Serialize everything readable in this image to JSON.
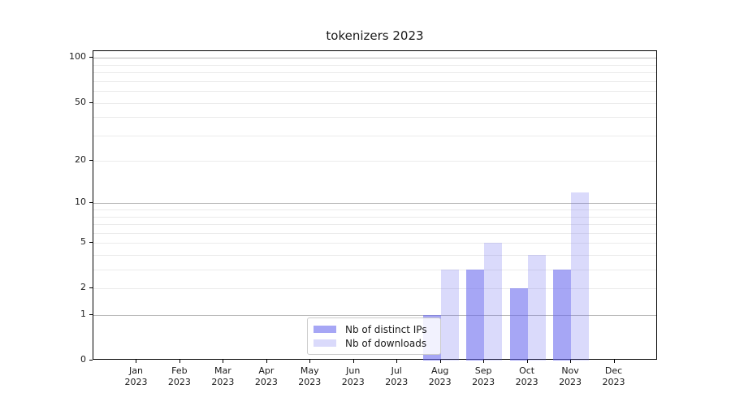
{
  "chart_data": {
    "type": "bar",
    "title": "tokenizers 2023",
    "categories": [
      "Jan 2023",
      "Feb 2023",
      "Mar 2023",
      "Apr 2023",
      "May 2023",
      "Jun 2023",
      "Jul 2023",
      "Aug 2023",
      "Sep 2023",
      "Oct 2023",
      "Nov 2023",
      "Dec 2023"
    ],
    "series": [
      {
        "name": "Nb of distinct IPs",
        "color": "#6666ee",
        "alpha": 0.58,
        "values": [
          0,
          0,
          0,
          0,
          0,
          0,
          0,
          1,
          3,
          2,
          3,
          0
        ]
      },
      {
        "name": "Nb of downloads",
        "color": "#6666ee",
        "alpha": 0.24,
        "values": [
          0,
          0,
          0,
          0,
          0,
          0,
          0,
          3,
          5,
          4,
          12,
          0
        ]
      }
    ],
    "yscale": "log1p",
    "ylim": [
      0,
      111
    ],
    "yticks": [
      0,
      1,
      2,
      5,
      10,
      20,
      50,
      100
    ],
    "major_gridlines": [
      1,
      10,
      100
    ],
    "minor_gridlines": [
      2,
      3,
      4,
      5,
      6,
      7,
      8,
      9,
      20,
      30,
      40,
      50,
      60,
      70,
      80,
      90
    ],
    "grid": true,
    "legend_position": "lower center"
  },
  "colors": {
    "major_grid": "#b9b9b9",
    "minor_grid": "#ebebeb",
    "axis": "#000000",
    "text": "#1a1a1a"
  }
}
